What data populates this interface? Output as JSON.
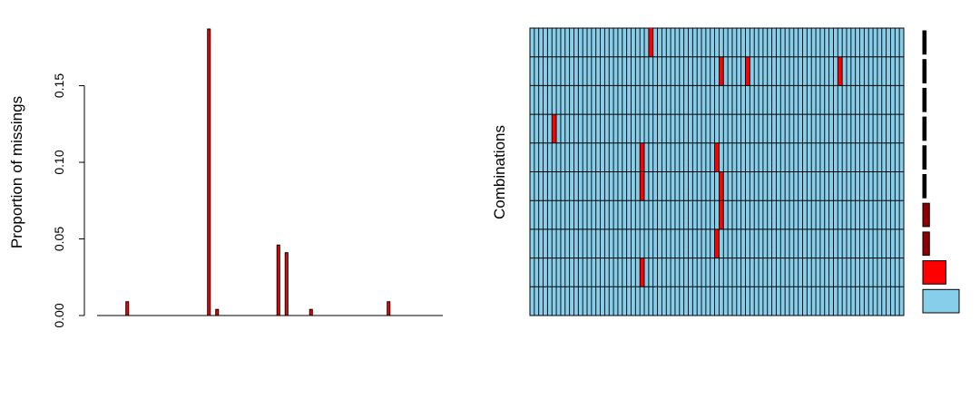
{
  "colors": {
    "missing": "#FF0000",
    "observed": "#87CEEB",
    "border": "#000000",
    "background": "#FFFFFF"
  },
  "chart_data": [
    {
      "type": "bar",
      "ylabel": "Proportion of missings",
      "xlabel": "",
      "ylim": [
        0,
        0.187
      ],
      "yticks": [
        0.0,
        0.05,
        0.1,
        0.15
      ],
      "ytick_labels": [
        "0.00",
        "0.05",
        "0.10",
        "0.15"
      ],
      "bar_color": "#FF0000",
      "n_variables": 85,
      "nonzero_values": [
        {
          "index": 7,
          "value": 0.009
        },
        {
          "index": 27,
          "value": 0.187
        },
        {
          "index": 29,
          "value": 0.004
        },
        {
          "index": 44,
          "value": 0.046
        },
        {
          "index": 46,
          "value": 0.041
        },
        {
          "index": 52,
          "value": 0.004
        },
        {
          "index": 71,
          "value": 0.009
        }
      ],
      "grid": false
    },
    {
      "type": "heatmap",
      "ylabel": "Combinations",
      "n_variables": 85,
      "n_rows": 10,
      "observed_color": "#87CEEB",
      "missing_color": "#FF0000",
      "rows": [
        {
          "missing_cols": [
            27
          ],
          "frequency": 0.001
        },
        {
          "missing_cols": [
            43,
            49,
            70
          ],
          "frequency": 0.001
        },
        {
          "missing_cols": [],
          "frequency": 0.001
        },
        {
          "missing_cols": [
            5
          ],
          "frequency": 0.001
        },
        {
          "missing_cols": [
            25,
            42
          ],
          "frequency": 0.001
        },
        {
          "missing_cols": [
            25,
            43
          ],
          "frequency": 0.001
        },
        {
          "missing_cols": [
            43
          ],
          "frequency": 0.002
        },
        {
          "missing_cols": [
            42
          ],
          "frequency": 0.002
        },
        {
          "missing_cols": [
            25
          ],
          "frequency": 0.007
        },
        {
          "missing_cols": [],
          "frequency": 0.011
        }
      ],
      "frequency_bar_colors": [
        "#000000",
        "#000000",
        "#000000",
        "#000000",
        "#000000",
        "#000000",
        "#8B0000",
        "#8B0000",
        "#FF0000",
        "#87CEEB"
      ]
    }
  ]
}
